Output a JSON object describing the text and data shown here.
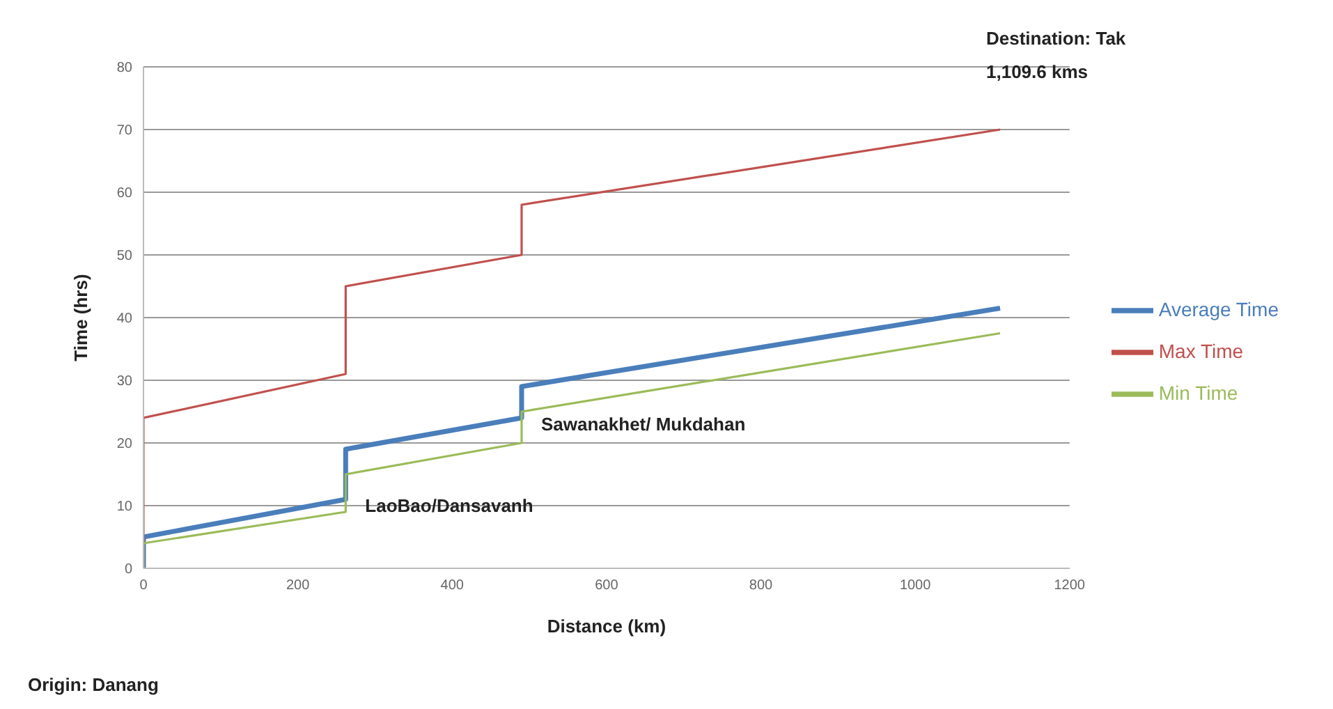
{
  "chart_data": {
    "type": "line",
    "xlabel": "Distance (km)",
    "ylabel": "Time (hrs)",
    "xlim": [
      0,
      1200
    ],
    "xticks": [
      0,
      200,
      400,
      600,
      800,
      1000,
      1200
    ],
    "ylim": [
      0,
      80
    ],
    "yticks": [
      0,
      10,
      20,
      30,
      40,
      50,
      60,
      70,
      80
    ],
    "grid": "y",
    "legend": "right",
    "marker": "none",
    "line_style": "solid",
    "series": [
      {
        "name": "Average Time",
        "color": "#4a7ebb",
        "x": [
          0,
          0,
          262,
          262,
          490,
          490,
          1110
        ],
        "values": [
          0,
          5,
          11,
          19,
          24,
          29,
          41.5
        ]
      },
      {
        "name": "Max Time",
        "color": "#c0504d",
        "x": [
          0,
          0,
          262,
          262,
          490,
          490,
          1110
        ],
        "values": [
          0,
          24,
          31,
          45,
          50,
          58,
          70
        ]
      },
      {
        "name": "Min Time",
        "color": "#9bbb59",
        "x": [
          0,
          0,
          262,
          262,
          490,
          490,
          1110
        ],
        "values": [
          0,
          4,
          9,
          15,
          20,
          25,
          37.5
        ]
      }
    ],
    "annotations": [
      {
        "text": "LaoBao/Dansavanh",
        "x": 262,
        "y": 10
      },
      {
        "text": "Sawanakhet/ Mukdahan",
        "x": 490,
        "y": 23
      },
      "Destination: Tak",
      "1,109.6 kms",
      "Origin: Danang"
    ]
  }
}
